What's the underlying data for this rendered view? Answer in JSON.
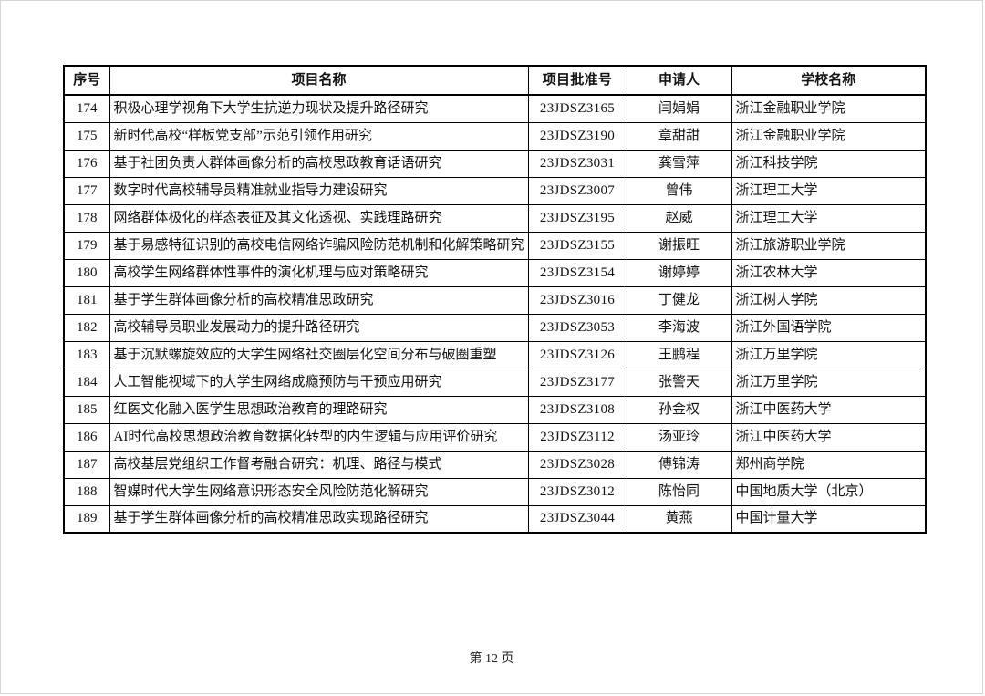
{
  "page": {
    "footer": "第 12 页"
  },
  "table": {
    "headers": [
      "序号",
      "项目名称",
      "项目批准号",
      "申请人",
      "学校名称"
    ],
    "rows": [
      {
        "no": "174",
        "title": "积极心理学视角下大学生抗逆力现状及提升路径研究",
        "grant_no": "23JDSZ3165",
        "applicant": "闫娟娟",
        "school": "浙江金融职业学院"
      },
      {
        "no": "175",
        "title": "新时代高校“样板党支部”示范引领作用研究",
        "grant_no": "23JDSZ3190",
        "applicant": "章甜甜",
        "school": "浙江金融职业学院"
      },
      {
        "no": "176",
        "title": "基于社团负责人群体画像分析的高校思政教育话语研究",
        "grant_no": "23JDSZ3031",
        "applicant": "龚雪萍",
        "school": "浙江科技学院"
      },
      {
        "no": "177",
        "title": "数字时代高校辅导员精准就业指导力建设研究",
        "grant_no": "23JDSZ3007",
        "applicant": "曾伟",
        "school": "浙江理工大学"
      },
      {
        "no": "178",
        "title": "网络群体极化的样态表征及其文化透视、实践理路研究",
        "grant_no": "23JDSZ3195",
        "applicant": "赵威",
        "school": "浙江理工大学"
      },
      {
        "no": "179",
        "title": "基于易感特征识别的高校电信网络诈骗风险防范机制和化解策略研究",
        "grant_no": "23JDSZ3155",
        "applicant": "谢振旺",
        "school": "浙江旅游职业学院"
      },
      {
        "no": "180",
        "title": "高校学生网络群体性事件的演化机理与应对策略研究",
        "grant_no": "23JDSZ3154",
        "applicant": "谢婷婷",
        "school": "浙江农林大学"
      },
      {
        "no": "181",
        "title": "基于学生群体画像分析的高校精准思政研究",
        "grant_no": "23JDSZ3016",
        "applicant": "丁健龙",
        "school": "浙江树人学院"
      },
      {
        "no": "182",
        "title": "高校辅导员职业发展动力的提升路径研究",
        "grant_no": "23JDSZ3053",
        "applicant": "李海波",
        "school": "浙江外国语学院"
      },
      {
        "no": "183",
        "title": "基于沉默螺旋效应的大学生网络社交圈层化空间分布与破圈重塑",
        "grant_no": "23JDSZ3126",
        "applicant": "王鹏程",
        "school": "浙江万里学院"
      },
      {
        "no": "184",
        "title": "人工智能视域下的大学生网络成瘾预防与干预应用研究",
        "grant_no": "23JDSZ3177",
        "applicant": "张警天",
        "school": "浙江万里学院"
      },
      {
        "no": "185",
        "title": "红医文化融入医学生思想政治教育的理路研究",
        "grant_no": "23JDSZ3108",
        "applicant": "孙金权",
        "school": "浙江中医药大学"
      },
      {
        "no": "186",
        "title": "AI时代高校思想政治教育数据化转型的内生逻辑与应用评价研究",
        "grant_no": "23JDSZ3112",
        "applicant": "汤亚玲",
        "school": "浙江中医药大学"
      },
      {
        "no": "187",
        "title": "高校基层党组织工作督考融合研究：机理、路径与模式",
        "grant_no": "23JDSZ3028",
        "applicant": "傅锦涛",
        "school": "郑州商学院"
      },
      {
        "no": "188",
        "title": "智媒时代大学生网络意识形态安全风险防范化解研究",
        "grant_no": "23JDSZ3012",
        "applicant": "陈怡同",
        "school": "中国地质大学（北京）"
      },
      {
        "no": "189",
        "title": "基于学生群体画像分析的高校精准思政实现路径研究",
        "grant_no": "23JDSZ3044",
        "applicant": "黄燕",
        "school": "中国计量大学"
      }
    ]
  }
}
